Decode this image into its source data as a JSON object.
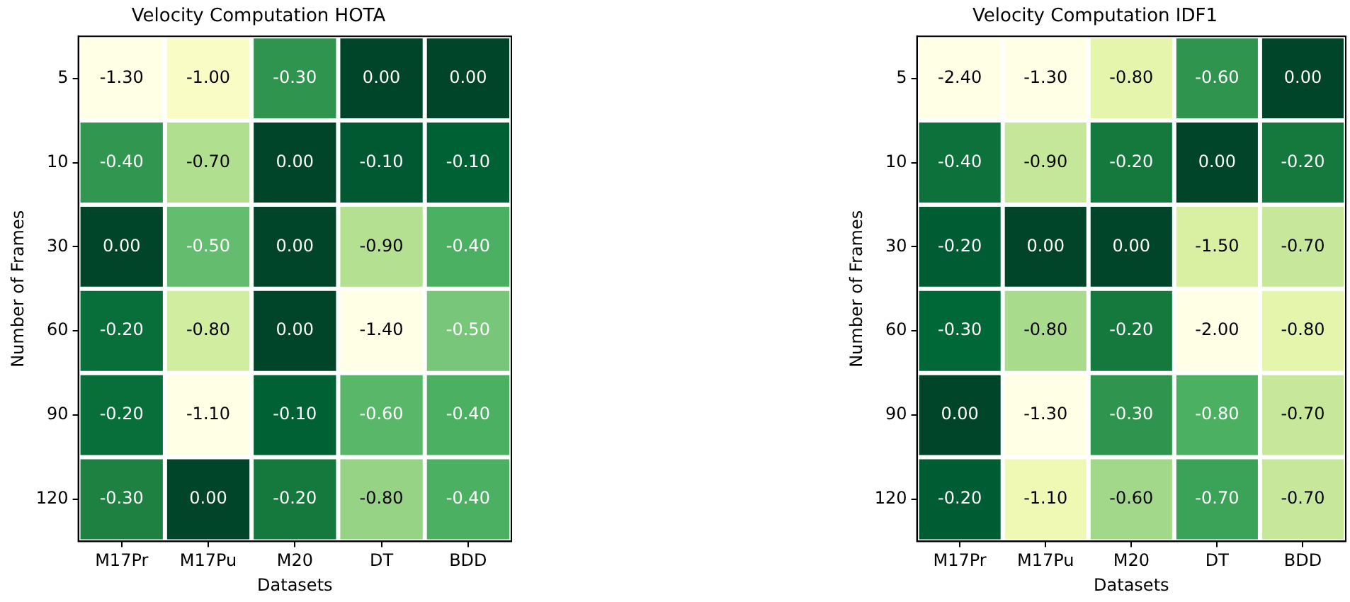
{
  "chart_data": [
    {
      "type": "heatmap",
      "title": "Velocity Computation HOTA",
      "xlabel": "Datasets",
      "ylabel": "Number of Frames",
      "categories": [
        "M17Pr",
        "M17Pu",
        "M20",
        "DT",
        "BDD"
      ],
      "y_categories": [
        "5",
        "10",
        "30",
        "60",
        "90",
        "120"
      ],
      "cells": [
        [
          -1.3,
          -1.0,
          -0.3,
          0.0,
          0.0
        ],
        [
          -0.4,
          -0.7,
          0.0,
          -0.1,
          -0.1
        ],
        [
          0.0,
          -0.5,
          0.0,
          -0.9,
          -0.4
        ],
        [
          -0.2,
          -0.8,
          0.0,
          -1.4,
          -0.5
        ],
        [
          -0.2,
          -1.1,
          -0.1,
          -0.6,
          -0.4
        ],
        [
          -0.3,
          0.0,
          -0.2,
          -0.8,
          -0.4
        ]
      ],
      "cell_labels": [
        [
          "-1.30",
          "-1.00",
          "-0.30",
          "0.00",
          "0.00"
        ],
        [
          "-0.40",
          "-0.70",
          "0.00",
          "-0.10",
          "-0.10"
        ],
        [
          "0.00",
          "-0.50",
          "0.00",
          "-0.90",
          "-0.40"
        ],
        [
          "-0.20",
          "-0.80",
          "0.00",
          "-1.40",
          "-0.50"
        ],
        [
          "-0.20",
          "-1.10",
          "-0.10",
          "-0.60",
          "-0.40"
        ],
        [
          "-0.30",
          "0.00",
          "-0.20",
          "-0.80",
          "-0.40"
        ]
      ]
    },
    {
      "type": "heatmap",
      "title": "Velocity Computation IDF1",
      "xlabel": "Datasets",
      "ylabel": "Number of Frames",
      "categories": [
        "M17Pr",
        "M17Pu",
        "M20",
        "DT",
        "BDD"
      ],
      "y_categories": [
        "5",
        "10",
        "30",
        "60",
        "90",
        "120"
      ],
      "cells": [
        [
          -2.4,
          -1.3,
          -0.8,
          -0.6,
          0.0
        ],
        [
          -0.4,
          -0.9,
          -0.2,
          0.0,
          -0.2
        ],
        [
          -0.2,
          0.0,
          0.0,
          -1.5,
          -0.7
        ],
        [
          -0.3,
          -0.8,
          -0.2,
          -2.0,
          -0.8
        ],
        [
          0.0,
          -1.3,
          -0.3,
          -0.8,
          -0.7
        ],
        [
          -0.2,
          -1.1,
          -0.6,
          -0.7,
          -0.7
        ]
      ],
      "cell_labels": [
        [
          "-2.40",
          "-1.30",
          "-0.80",
          "-0.60",
          "0.00"
        ],
        [
          "-0.40",
          "-0.90",
          "-0.20",
          "0.00",
          "-0.20"
        ],
        [
          "-0.20",
          "0.00",
          "0.00",
          "-1.50",
          "-0.70"
        ],
        [
          "-0.30",
          "-0.80",
          "-0.20",
          "-2.00",
          "-0.80"
        ],
        [
          "0.00",
          "-1.30",
          "-0.30",
          "-0.80",
          "-0.70"
        ],
        [
          "-0.20",
          "-1.10",
          "-0.60",
          "-0.70",
          "-0.70"
        ]
      ]
    }
  ]
}
